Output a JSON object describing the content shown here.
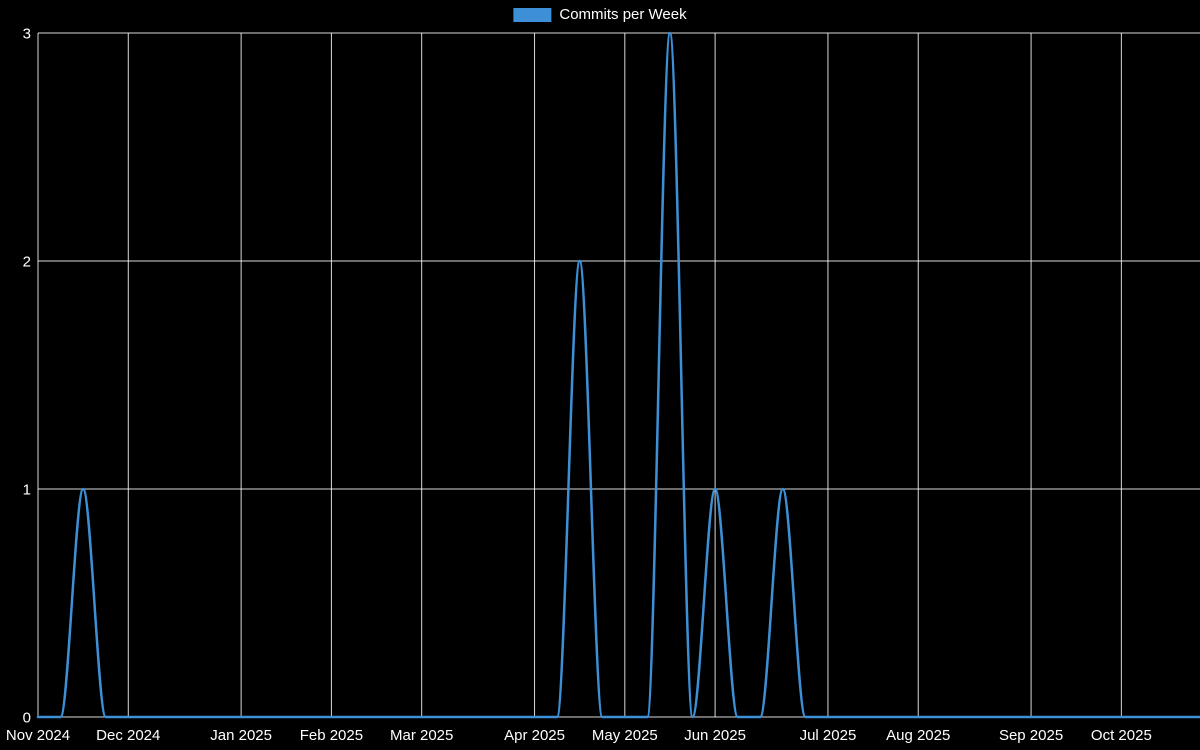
{
  "chart": {
    "background_color": "#000000",
    "line_color": "#3d8fd6",
    "grid_color": "rgba(255,255,255,0.85)",
    "text_color": "#ffffff"
  },
  "chart_data": {
    "type": "line",
    "title": "Commits per Week",
    "legend_position": "top",
    "grid": true,
    "x_unit": "week",
    "ylim": [
      0,
      3
    ],
    "y_ticks": [
      0,
      1,
      2,
      3
    ],
    "x_ticks": [
      {
        "week": 0,
        "label": "Nov 2024"
      },
      {
        "week": 4,
        "label": "Dec 2024"
      },
      {
        "week": 9,
        "label": "Jan 2025"
      },
      {
        "week": 13,
        "label": "Feb 2025"
      },
      {
        "week": 17,
        "label": "Mar 2025"
      },
      {
        "week": 22,
        "label": "Apr 2025"
      },
      {
        "week": 26,
        "label": "May 2025"
      },
      {
        "week": 30,
        "label": "Jun 2025"
      },
      {
        "week": 35,
        "label": "Jul 2025"
      },
      {
        "week": 39,
        "label": "Aug 2025"
      },
      {
        "week": 44,
        "label": "Sep 2025"
      },
      {
        "week": 48,
        "label": "Oct 2025"
      }
    ],
    "series": [
      {
        "name": "Commits per Week",
        "values": [
          0,
          0,
          1,
          0,
          0,
          0,
          0,
          0,
          0,
          0,
          0,
          0,
          0,
          0,
          0,
          0,
          0,
          0,
          0,
          0,
          0,
          0,
          0,
          0,
          2,
          0,
          0,
          0,
          3,
          0,
          1,
          0,
          0,
          1,
          0,
          0,
          0,
          0,
          0,
          0,
          0,
          0,
          0,
          0,
          0,
          0,
          0,
          0,
          0,
          0,
          0,
          0
        ]
      }
    ]
  }
}
